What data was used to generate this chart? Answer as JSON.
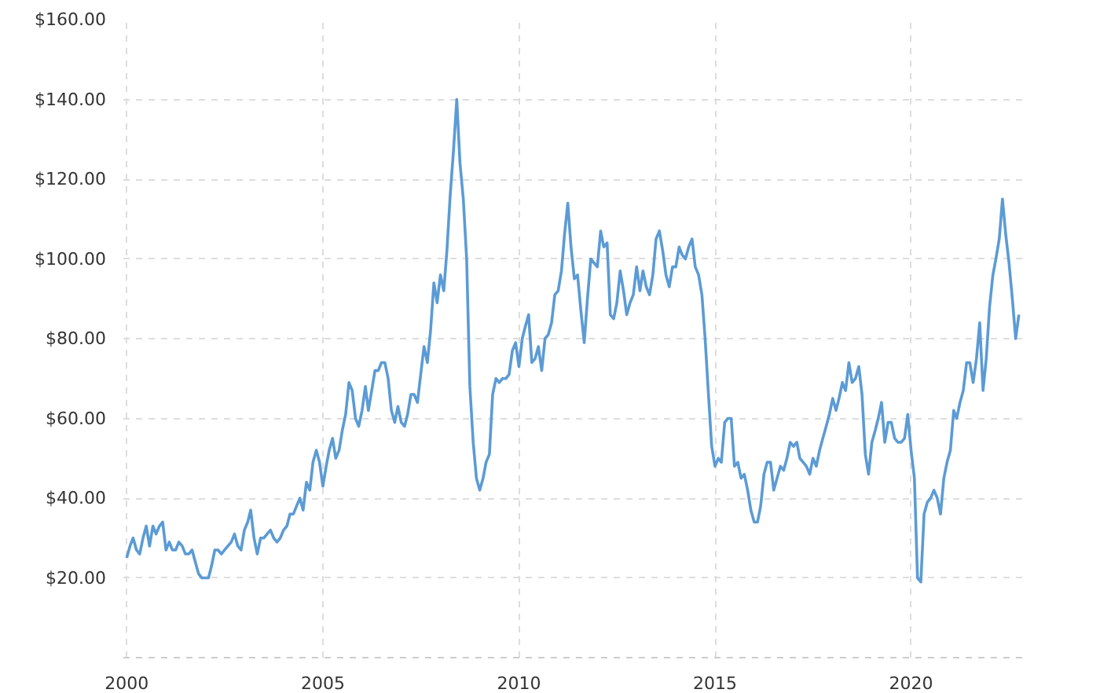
{
  "chart_data": {
    "type": "line",
    "xlim": [
      "1999-12",
      "2022-11"
    ],
    "xticks": [
      "2000",
      "2005",
      "2010",
      "2015",
      "2020"
    ],
    "ylim": [
      0,
      160
    ],
    "yticks": [
      {
        "value": 20,
        "label": "$20.00"
      },
      {
        "value": 40,
        "label": "$40.00"
      },
      {
        "value": 60,
        "label": "$60.00"
      },
      {
        "value": 80,
        "label": "$80.00"
      },
      {
        "value": 100,
        "label": "$100.00"
      },
      {
        "value": 120,
        "label": "$120.00"
      },
      {
        "value": 140,
        "label": "$140.00"
      },
      {
        "value": 160,
        "label": "$160.00"
      }
    ],
    "grid": true,
    "marker": "none",
    "line_style": "solid",
    "series": [
      {
        "color": "#5b9bd5",
        "x": [
          "2000-01",
          "2000-02",
          "2000-03",
          "2000-04",
          "2000-05",
          "2000-06",
          "2000-07",
          "2000-08",
          "2000-09",
          "2000-10",
          "2000-11",
          "2000-12",
          "2001-01",
          "2001-02",
          "2001-03",
          "2001-04",
          "2001-05",
          "2001-06",
          "2001-07",
          "2001-08",
          "2001-09",
          "2001-10",
          "2001-11",
          "2001-12",
          "2002-01",
          "2002-02",
          "2002-03",
          "2002-04",
          "2002-05",
          "2002-06",
          "2002-07",
          "2002-08",
          "2002-09",
          "2002-10",
          "2002-11",
          "2002-12",
          "2003-01",
          "2003-02",
          "2003-03",
          "2003-04",
          "2003-05",
          "2003-06",
          "2003-07",
          "2003-08",
          "2003-09",
          "2003-10",
          "2003-11",
          "2003-12",
          "2004-01",
          "2004-02",
          "2004-03",
          "2004-04",
          "2004-05",
          "2004-06",
          "2004-07",
          "2004-08",
          "2004-09",
          "2004-10",
          "2004-11",
          "2004-12",
          "2005-01",
          "2005-02",
          "2005-03",
          "2005-04",
          "2005-05",
          "2005-06",
          "2005-07",
          "2005-08",
          "2005-09",
          "2005-10",
          "2005-11",
          "2005-12",
          "2006-01",
          "2006-02",
          "2006-03",
          "2006-04",
          "2006-05",
          "2006-06",
          "2006-07",
          "2006-08",
          "2006-09",
          "2006-10",
          "2006-11",
          "2006-12",
          "2007-01",
          "2007-02",
          "2007-03",
          "2007-04",
          "2007-05",
          "2007-06",
          "2007-07",
          "2007-08",
          "2007-09",
          "2007-10",
          "2007-11",
          "2007-12",
          "2008-01",
          "2008-02",
          "2008-03",
          "2008-04",
          "2008-05",
          "2008-06",
          "2008-07",
          "2008-08",
          "2008-09",
          "2008-10",
          "2008-11",
          "2008-12",
          "2009-01",
          "2009-02",
          "2009-03",
          "2009-04",
          "2009-05",
          "2009-06",
          "2009-07",
          "2009-08",
          "2009-09",
          "2009-10",
          "2009-11",
          "2009-12",
          "2010-01",
          "2010-02",
          "2010-03",
          "2010-04",
          "2010-05",
          "2010-06",
          "2010-07",
          "2010-08",
          "2010-09",
          "2010-10",
          "2010-11",
          "2010-12",
          "2011-01",
          "2011-02",
          "2011-03",
          "2011-04",
          "2011-05",
          "2011-06",
          "2011-07",
          "2011-08",
          "2011-09",
          "2011-10",
          "2011-11",
          "2011-12",
          "2012-01",
          "2012-02",
          "2012-03",
          "2012-04",
          "2012-05",
          "2012-06",
          "2012-07",
          "2012-08",
          "2012-09",
          "2012-10",
          "2012-11",
          "2012-12",
          "2013-01",
          "2013-02",
          "2013-03",
          "2013-04",
          "2013-05",
          "2013-06",
          "2013-07",
          "2013-08",
          "2013-09",
          "2013-10",
          "2013-11",
          "2013-12",
          "2014-01",
          "2014-02",
          "2014-03",
          "2014-04",
          "2014-05",
          "2014-06",
          "2014-07",
          "2014-08",
          "2014-09",
          "2014-10",
          "2014-11",
          "2014-12",
          "2015-01",
          "2015-02",
          "2015-03",
          "2015-04",
          "2015-05",
          "2015-06",
          "2015-07",
          "2015-08",
          "2015-09",
          "2015-10",
          "2015-11",
          "2015-12",
          "2016-01",
          "2016-02",
          "2016-03",
          "2016-04",
          "2016-05",
          "2016-06",
          "2016-07",
          "2016-08",
          "2016-09",
          "2016-10",
          "2016-11",
          "2016-12",
          "2017-01",
          "2017-02",
          "2017-03",
          "2017-04",
          "2017-05",
          "2017-06",
          "2017-07",
          "2017-08",
          "2017-09",
          "2017-10",
          "2017-11",
          "2017-12",
          "2018-01",
          "2018-02",
          "2018-03",
          "2018-04",
          "2018-05",
          "2018-06",
          "2018-07",
          "2018-08",
          "2018-09",
          "2018-10",
          "2018-11",
          "2018-12",
          "2019-01",
          "2019-02",
          "2019-03",
          "2019-04",
          "2019-05",
          "2019-06",
          "2019-07",
          "2019-08",
          "2019-09",
          "2019-10",
          "2019-11",
          "2019-12",
          "2020-01",
          "2020-02",
          "2020-03",
          "2020-04",
          "2020-05",
          "2020-06",
          "2020-07",
          "2020-08",
          "2020-09",
          "2020-10",
          "2020-11",
          "2020-12",
          "2021-01",
          "2021-02",
          "2021-03",
          "2021-04",
          "2021-05",
          "2021-06",
          "2021-07",
          "2021-08",
          "2021-09",
          "2021-10",
          "2021-11",
          "2021-12",
          "2022-01",
          "2022-02",
          "2022-03",
          "2022-04",
          "2022-05",
          "2022-06",
          "2022-07",
          "2022-08",
          "2022-09",
          "2022-10"
        ],
        "values": [
          25,
          28,
          30,
          27,
          26,
          30,
          33,
          28,
          33,
          31,
          33,
          34,
          27,
          29,
          27,
          27,
          29,
          28,
          26,
          26,
          27,
          24,
          21,
          20,
          20,
          20,
          23,
          27,
          27,
          26,
          27,
          28,
          29,
          31,
          28,
          27,
          32,
          34,
          37,
          30,
          26,
          30,
          30,
          31,
          32,
          30,
          29,
          30,
          32,
          33,
          36,
          36,
          38,
          40,
          37,
          44,
          42,
          49,
          52,
          49,
          43,
          48,
          52,
          55,
          50,
          52,
          57,
          61,
          69,
          67,
          60,
          58,
          62,
          68,
          62,
          67,
          72,
          72,
          74,
          74,
          70,
          62,
          59,
          63,
          59,
          58,
          61,
          66,
          66,
          64,
          71,
          78,
          74,
          82,
          94,
          89,
          96,
          92,
          102,
          116,
          127,
          140,
          124,
          115,
          100,
          68,
          54,
          45,
          42,
          45,
          49,
          51,
          66,
          70,
          69,
          70,
          70,
          71,
          77,
          79,
          73,
          80,
          83,
          86,
          74,
          75,
          78,
          72,
          80,
          81,
          84,
          91,
          92,
          97,
          106,
          114,
          103,
          95,
          96,
          87,
          79,
          90,
          100,
          99,
          98,
          107,
          103,
          104,
          86,
          85,
          89,
          97,
          92,
          86,
          89,
          91,
          98,
          92,
          97,
          93,
          91,
          96,
          105,
          107,
          102,
          96,
          93,
          98,
          98,
          103,
          101,
          100,
          103,
          105,
          98,
          96,
          91,
          80,
          66,
          53,
          48,
          50,
          49,
          59,
          60,
          60,
          48,
          49,
          45,
          46,
          42,
          37,
          34,
          34,
          38,
          46,
          49,
          49,
          42,
          45,
          48,
          47,
          50,
          54,
          53,
          54,
          50,
          49,
          48,
          46,
          50,
          48,
          52,
          55,
          58,
          61,
          65,
          62,
          65,
          69,
          67,
          74,
          69,
          70,
          73,
          66,
          51,
          46,
          54,
          57,
          60,
          64,
          54,
          59,
          59,
          55,
          54,
          54,
          55,
          61,
          52,
          45,
          20,
          19,
          36,
          39,
          40,
          42,
          40,
          36,
          45,
          49,
          52,
          62,
          60,
          64,
          67,
          74,
          74,
          69,
          75,
          84,
          67,
          75,
          88,
          96,
          100,
          105,
          115,
          106,
          99,
          90,
          80,
          86
        ]
      }
    ]
  }
}
